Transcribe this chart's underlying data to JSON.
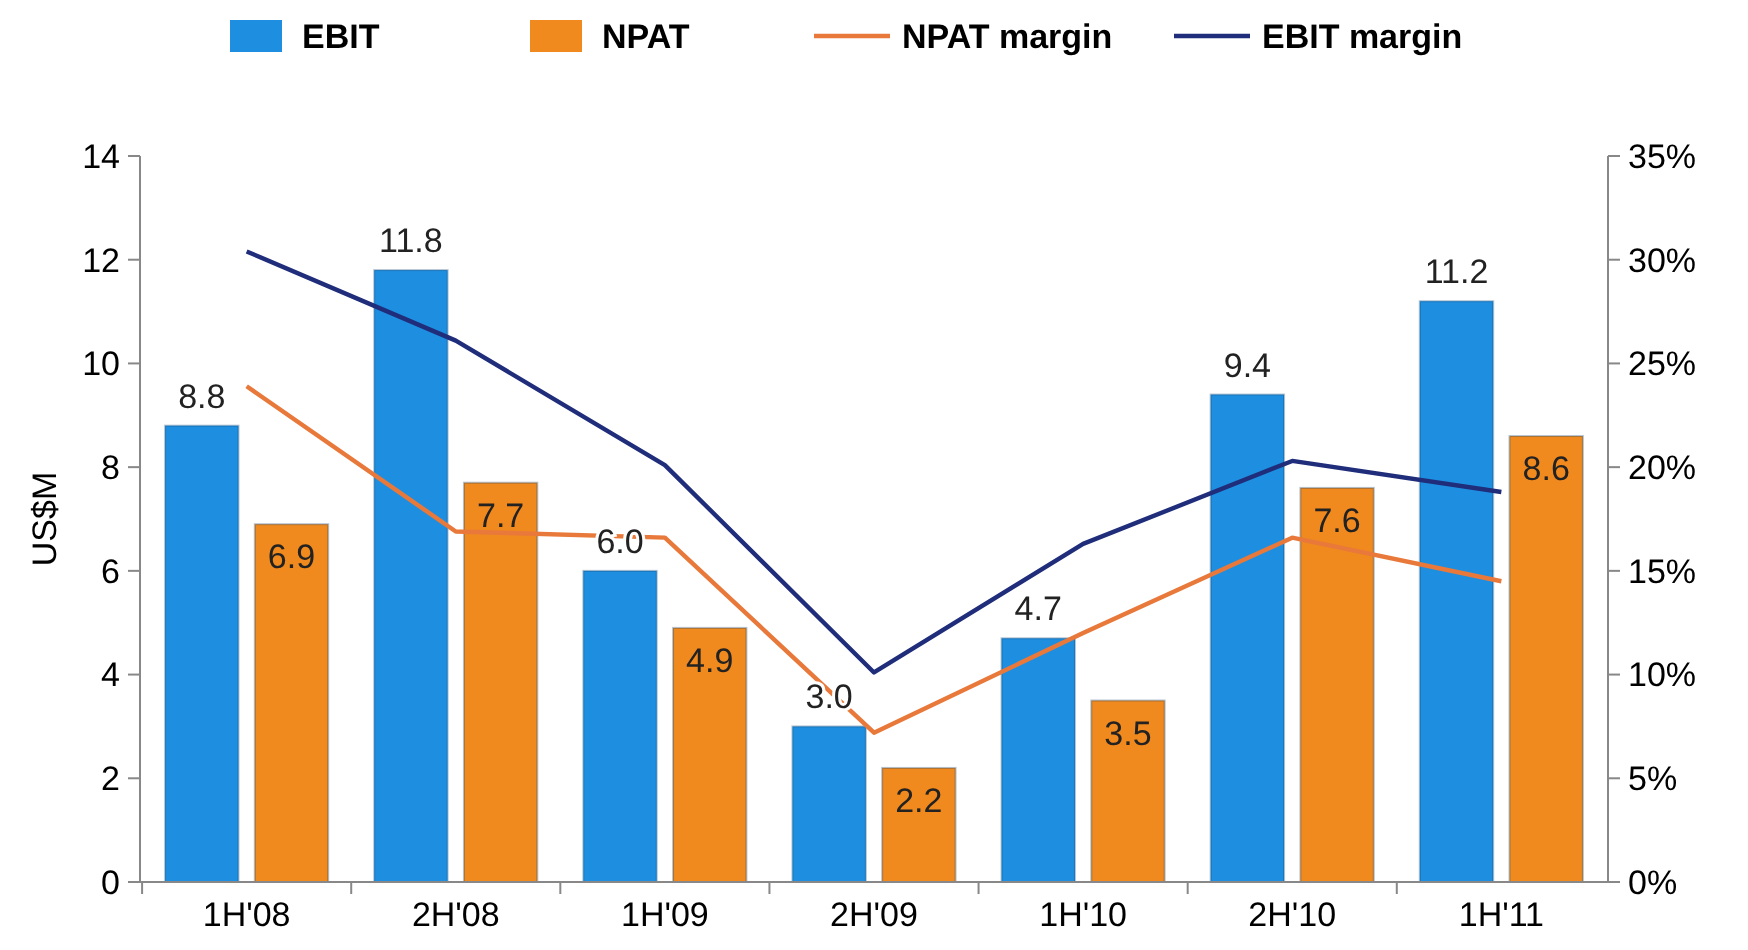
{
  "chart_data": {
    "type": "bar",
    "ylabel": "US$M",
    "categories": [
      "1H'08",
      "2H'08",
      "1H'09",
      "2H'09",
      "1H'10",
      "2H'10",
      "1H'11"
    ],
    "series": [
      {
        "name": "EBIT",
        "color": "#1e8fe0",
        "values": [
          8.8,
          11.8,
          6.0,
          3.0,
          4.7,
          9.4,
          11.2
        ],
        "value_labels": [
          "8.8",
          "11.8",
          "6.0",
          "3.0",
          "4.7",
          "9.4",
          "11.2"
        ]
      },
      {
        "name": "NPAT",
        "color": "#f0891e",
        "values": [
          6.9,
          7.7,
          4.9,
          2.2,
          3.5,
          7.6,
          8.6
        ],
        "value_labels": [
          "6.9",
          "7.7",
          "4.9",
          "2.2",
          "3.5",
          "7.6",
          "8.6"
        ]
      },
      {
        "name": "NPAT margin",
        "type": "line",
        "axis": "y2",
        "color": "#e8793a",
        "values": [
          23.9,
          16.9,
          16.6,
          7.2,
          12.0,
          16.6,
          14.5
        ]
      },
      {
        "name": "EBIT margin",
        "type": "line",
        "axis": "y2",
        "color": "#1f2d7a",
        "values": [
          30.4,
          26.1,
          20.1,
          10.1,
          16.3,
          20.3,
          18.8
        ]
      }
    ],
    "ylim": [
      0,
      14
    ],
    "yticks": [
      0,
      2,
      4,
      6,
      8,
      10,
      12,
      14
    ],
    "y2lim": [
      0,
      35
    ],
    "y2ticks": [
      {
        "value": 0,
        "label": "0%"
      },
      {
        "value": 5,
        "label": "5%"
      },
      {
        "value": 10,
        "label": "10%"
      },
      {
        "value": 15,
        "label": "15%"
      },
      {
        "value": 20,
        "label": "20%"
      },
      {
        "value": 25,
        "label": "25%"
      },
      {
        "value": 30,
        "label": "30%"
      },
      {
        "value": 35,
        "label": "35%"
      }
    ],
    "legend": "top",
    "marker": "none",
    "line_style": "solid"
  }
}
